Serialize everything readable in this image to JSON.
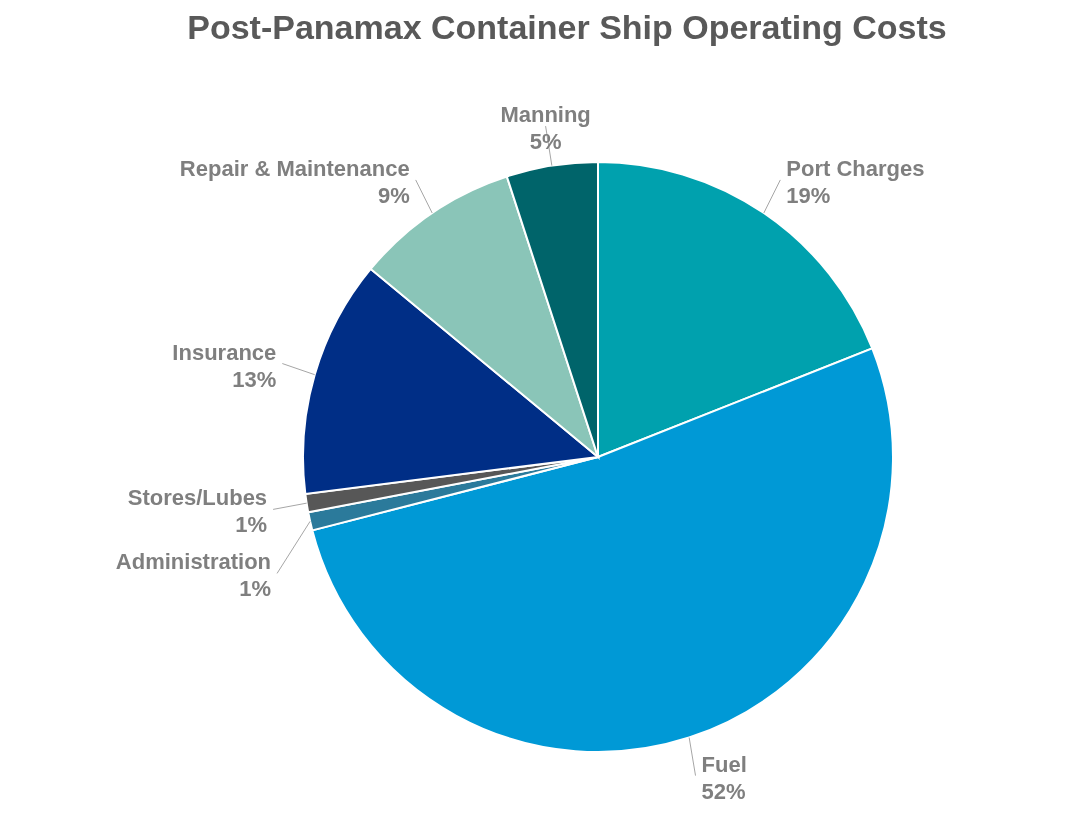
{
  "chart_data": {
    "type": "pie",
    "title": "Post-Panamax Container Ship Operating Costs",
    "categories": [
      "Port Charges",
      "Fuel",
      "Administration",
      "Stores/Lubes",
      "Insurance",
      "Repair & Maintenance",
      "Manning"
    ],
    "values": [
      19,
      52,
      1,
      1,
      13,
      9,
      5
    ],
    "value_labels": [
      "19%",
      "52%",
      "1%",
      "1%",
      "13%",
      "9%",
      "5%"
    ],
    "colors": [
      "#00a1ae",
      "#0099d6",
      "#2b7a9b",
      "#575757",
      "#002e86",
      "#8ac5b8",
      "#00646a"
    ],
    "legend": false
  }
}
